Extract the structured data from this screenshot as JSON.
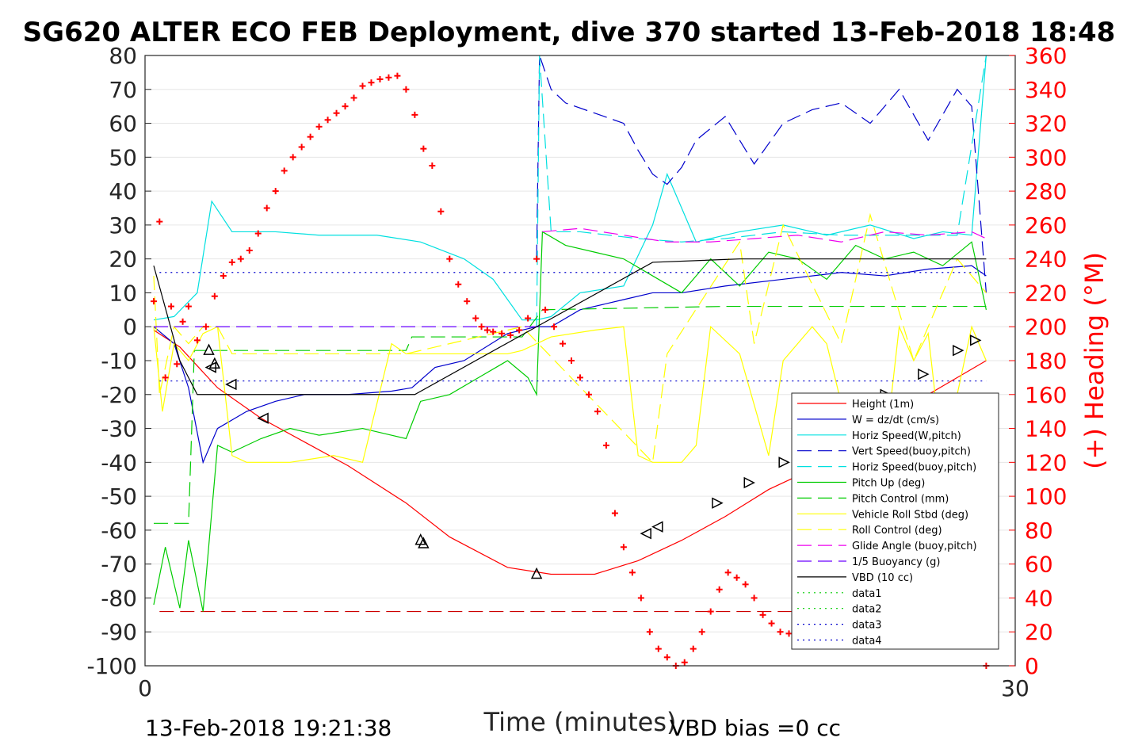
{
  "chart_data": {
    "type": "line",
    "title": "SG620 ALTER ECO FEB Deployment, dive 370 started 13-Feb-2018 18:48",
    "xlabel": "Time (minutes)",
    "ylabel_right": "(+) Heading (°M)",
    "xlim": [
      0,
      30
    ],
    "ylim_left": [
      -100,
      80
    ],
    "ylim_right": [
      0,
      360
    ],
    "x_ticks": [
      "0",
      "30"
    ],
    "y_ticks_left": [
      "80",
      "70",
      "60",
      "50",
      "40",
      "30",
      "20",
      "10",
      "0",
      "-10",
      "-20",
      "-30",
      "-40",
      "-50",
      "-60",
      "-70",
      "-80",
      "-90",
      "-100"
    ],
    "y_ticks_right": [
      "360",
      "340",
      "320",
      "300",
      "280",
      "260",
      "240",
      "220",
      "200",
      "180",
      "160",
      "140",
      "120",
      "100",
      "80",
      "60",
      "40",
      "20",
      "0"
    ],
    "grid": true,
    "legend_position": "lower-right",
    "footer_left": "13-Feb-2018 19:21:38",
    "footer_right": "VBD bias =0 cc",
    "series": [
      {
        "name": "Height (1m)",
        "color": "#ff0000",
        "style": "solid",
        "x": [
          0.3,
          1.2,
          2.5,
          4.0,
          5.5,
          7.0,
          9.0,
          10.5,
          12.5,
          14.0,
          15.5,
          17.0,
          18.5,
          20.0,
          21.5,
          23.5,
          25.5,
          27.0,
          29.0
        ],
        "y": [
          -1,
          -6,
          -18,
          -27,
          -34,
          -41,
          -52,
          -62,
          -71,
          -73,
          -73,
          -69,
          -63,
          -56,
          -48,
          -40,
          -30,
          -20,
          -10
        ]
      },
      {
        "name": "W = dz/dt (cm/s)",
        "color": "#0000cc",
        "style": "solid",
        "x": [
          0.3,
          1.0,
          1.5,
          2.0,
          2.5,
          3.5,
          4.5,
          5.5,
          7.0,
          8.5,
          9.2,
          10.0,
          11.0,
          12.5,
          13.5,
          14.0,
          15.0,
          16.5,
          17.5,
          18.5,
          20.0,
          22.0,
          24.0,
          25.5,
          27.0,
          28.5,
          29.0
        ],
        "y": [
          0,
          -5,
          -18,
          -40,
          -30,
          -25,
          -22,
          -20,
          -20,
          -19,
          -18,
          -12,
          -10,
          -2,
          0,
          0,
          5,
          8,
          10,
          10,
          12,
          14,
          16,
          15,
          17,
          18,
          15
        ]
      },
      {
        "name": "Horiz Speed(W,pitch)",
        "color": "#00e0e0",
        "style": "solid",
        "x": [
          0.3,
          1.0,
          1.8,
          2.3,
          3.0,
          4.5,
          6.0,
          8.0,
          9.5,
          11.0,
          12.0,
          13.0,
          13.5,
          14.0,
          15.0,
          16.5,
          17.5,
          18.0,
          19.0,
          20.5,
          22.0,
          23.5,
          25.0,
          26.5,
          27.5,
          28.5,
          29.0
        ],
        "y": [
          2,
          3,
          10,
          37,
          28,
          28,
          27,
          27,
          25,
          20,
          14,
          2,
          2,
          3,
          10,
          12,
          30,
          45,
          25,
          28,
          30,
          27,
          30,
          26,
          28,
          27,
          80
        ]
      },
      {
        "name": "Vert Speed(buoy,pitch)",
        "color": "#0000cc",
        "style": "dashed",
        "x": [
          13.5,
          13.6,
          14.0,
          14.5,
          15.5,
          16.5,
          17.0,
          17.5,
          18.0,
          18.5,
          19.0,
          20.0,
          21.0,
          22.0,
          23.0,
          24.0,
          25.0,
          26.0,
          27.0,
          28.0,
          28.5,
          29.0
        ],
        "y": [
          20,
          80,
          70,
          66,
          63,
          60,
          52,
          45,
          42,
          47,
          55,
          62,
          48,
          60,
          64,
          66,
          60,
          70,
          55,
          70,
          65,
          10
        ]
      },
      {
        "name": "Horiz Speed(buoy,pitch)",
        "color": "#00e0e0",
        "style": "dashed",
        "x": [
          13.5,
          13.6,
          14.0,
          15.0,
          17.0,
          18.5,
          20.0,
          22.0,
          24.0,
          26.0,
          28.0,
          29.0
        ],
        "y": [
          0,
          80,
          28,
          28,
          26,
          25,
          26,
          28,
          27,
          27,
          27,
          80
        ]
      },
      {
        "name": "Pitch Up (deg)",
        "color": "#00cc00",
        "style": "solid",
        "x": [
          0.3,
          0.7,
          1.2,
          1.5,
          2.0,
          2.5,
          3.0,
          4.0,
          5.0,
          6.0,
          7.5,
          9.0,
          9.5,
          10.5,
          11.5,
          12.5,
          13.2,
          13.5,
          13.7,
          14.5,
          15.5,
          16.5,
          17.5,
          18.5,
          19.5,
          20.5,
          21.5,
          22.5,
          23.5,
          24.5,
          25.5,
          26.5,
          27.5,
          28.5,
          29.0
        ],
        "y": [
          -82,
          -65,
          -83,
          -63,
          -84,
          -35,
          -37,
          -33,
          -30,
          -32,
          -30,
          -33,
          -22,
          -20,
          -15,
          -10,
          -15,
          -20,
          28,
          24,
          22,
          20,
          15,
          10,
          20,
          12,
          22,
          20,
          14,
          24,
          20,
          22,
          18,
          25,
          5
        ]
      },
      {
        "name": "Pitch Control (mm)",
        "color": "#00cc00",
        "style": "dashed",
        "x": [
          0.3,
          1.5,
          1.7,
          2.0,
          2.5,
          9.0,
          9.2,
          13.0,
          13.7,
          20.0,
          29.0
        ],
        "y": [
          -58,
          -58,
          -7,
          -7,
          -7,
          -7,
          -3,
          -3,
          5,
          6,
          6
        ]
      },
      {
        "name": "Vehicle Roll Stbd (deg)",
        "color": "#ffff00",
        "style": "solid",
        "x": [
          0.3,
          0.6,
          1.0,
          1.5,
          2.0,
          2.5,
          3.0,
          3.5,
          4.0,
          5.0,
          6.5,
          7.5,
          8.5,
          9.0,
          9.5,
          11.0,
          12.5,
          13.0,
          13.5,
          14.0,
          15.5,
          16.5,
          17.0,
          17.5,
          18.5,
          19.0,
          19.5,
          20.5,
          21.5,
          22.0,
          23.0,
          23.5,
          24.5,
          25.5,
          26.0,
          26.5,
          27.0,
          27.5,
          28.5,
          29.0
        ],
        "y": [
          0,
          -25,
          -5,
          -10,
          -2,
          0,
          -38,
          -40,
          -40,
          -40,
          -38,
          -40,
          -5,
          -8,
          -8,
          -8,
          -8,
          -7,
          -5,
          -3,
          -1,
          0,
          -38,
          -40,
          -40,
          -35,
          0,
          -8,
          -38,
          -10,
          0,
          -5,
          -40,
          -38,
          0,
          -10,
          -2,
          -40,
          0,
          -10
        ]
      },
      {
        "name": "Roll Control (deg)",
        "color": "#ffff00",
        "style": "dashed",
        "x": [
          0.3,
          0.5,
          1.0,
          1.5,
          2.0,
          2.5,
          3.0,
          9.0,
          13.0,
          17.5,
          18.0,
          20.5,
          21.0,
          22.0,
          24.0,
          25.0,
          26.5,
          28.0,
          29.0
        ],
        "y": [
          15,
          -20,
          0,
          -5,
          0,
          0,
          -8,
          -8,
          0,
          -40,
          -8,
          25,
          -5,
          30,
          -5,
          33,
          -10,
          20,
          10
        ]
      },
      {
        "name": "Glide Angle (buoy,pitch)",
        "color": "#ee00ee",
        "style": "dashed",
        "x": [
          13.7,
          15.0,
          16.5,
          18.0,
          19.5,
          21.0,
          22.5,
          24.0,
          25.5,
          27.0,
          28.5,
          29.0
        ],
        "y": [
          28,
          29,
          27,
          25,
          25,
          26,
          27,
          25,
          28,
          27,
          28,
          26
        ]
      },
      {
        "name": "1/5 Buoyancy (g)",
        "color": "#6a00ff",
        "style": "dashed",
        "x": [
          0.3,
          13.2,
          13.7
        ],
        "y": [
          0,
          0,
          0
        ]
      },
      {
        "name": "VBD (10 cc)",
        "color": "#000000",
        "style": "solid",
        "x": [
          0.3,
          1.2,
          1.8,
          8.0,
          9.3,
          13.5,
          17.5,
          20.5,
          29.0
        ],
        "y": [
          18,
          -10,
          -20,
          -20,
          -20,
          0,
          19,
          20,
          20
        ]
      },
      {
        "name": "data1",
        "color": "#00cc00",
        "style": "dotted",
        "x": [],
        "y": []
      },
      {
        "name": "data2",
        "color": "#00cc00",
        "style": "dotted",
        "x": [],
        "y": []
      },
      {
        "name": "data3",
        "color": "#0000cc",
        "style": "dotted",
        "x": [
          0.5,
          29.0
        ],
        "y": [
          -16,
          -16
        ]
      },
      {
        "name": "data4",
        "color": "#0000cc",
        "style": "dotted",
        "x": [
          0.5,
          29.0
        ],
        "y": [
          16,
          16
        ]
      }
    ],
    "reference_line": {
      "color": "#cc0000",
      "style": "dashed",
      "x": [
        0.5,
        29.0
      ],
      "y": [
        -84,
        -84
      ]
    },
    "heading_points": {
      "name": "(+) Heading (°M)",
      "color": "#ff0000",
      "marker": "+",
      "x": [
        0.3,
        0.5,
        0.7,
        0.9,
        1.1,
        1.3,
        1.5,
        1.8,
        2.1,
        2.4,
        2.7,
        3.0,
        3.3,
        3.6,
        3.9,
        4.2,
        4.5,
        4.8,
        5.1,
        5.4,
        5.7,
        6.0,
        6.3,
        6.6,
        6.9,
        7.2,
        7.5,
        7.8,
        8.1,
        8.4,
        8.7,
        9.0,
        9.3,
        9.6,
        9.9,
        10.2,
        10.5,
        10.8,
        11.1,
        11.4,
        11.6,
        11.8,
        12.0,
        12.3,
        12.6,
        12.9,
        13.2,
        13.5,
        13.8,
        14.1,
        14.4,
        14.7,
        15.0,
        15.3,
        15.6,
        15.9,
        16.2,
        16.5,
        16.8,
        17.1,
        17.4,
        17.7,
        18.0,
        18.3,
        18.6,
        18.9,
        19.2,
        19.5,
        19.8,
        20.1,
        20.4,
        20.7,
        21.0,
        21.3,
        21.6,
        21.9,
        22.2,
        22.5,
        22.8,
        23.1,
        23.4,
        23.7,
        24.0,
        24.3,
        24.6,
        24.9,
        25.2,
        25.5,
        25.8,
        26.1,
        26.4,
        26.7,
        27.0,
        27.3,
        27.6,
        27.9,
        28.2,
        28.5,
        28.8,
        29.0,
        29.1
      ],
      "y": [
        215,
        262,
        170,
        212,
        178,
        203,
        212,
        192,
        200,
        218,
        230,
        238,
        240,
        245,
        255,
        270,
        280,
        292,
        300,
        306,
        312,
        318,
        322,
        326,
        330,
        335,
        342,
        344,
        346,
        347,
        348,
        340,
        325,
        305,
        295,
        268,
        240,
        225,
        215,
        205,
        200,
        198,
        197,
        196,
        195,
        198,
        205,
        240,
        210,
        200,
        190,
        180,
        170,
        160,
        150,
        130,
        90,
        70,
        55,
        40,
        20,
        10,
        5,
        0,
        2,
        10,
        20,
        32,
        45,
        55,
        52,
        48,
        40,
        30,
        25,
        20,
        19,
        20,
        25,
        30,
        35,
        48,
        55,
        52,
        50,
        48,
        45,
        43,
        40,
        37,
        38,
        35,
        30,
        25,
        18,
        30,
        32,
        15,
        12,
        0,
        15
      ]
    },
    "turn_markers_up": {
      "x": [
        2.2,
        2.4,
        9.5,
        9.6,
        13.5
      ],
      "y": [
        -7,
        -11,
        -63,
        -64,
        -73
      ]
    },
    "turn_markers_right": {
      "x": [
        2.3,
        3.0,
        4.1,
        17.3,
        17.7,
        19.7,
        20.8,
        22.0,
        23.4,
        24.6,
        25.5,
        26.8,
        28.0,
        28.6
      ],
      "y": [
        -12,
        -17,
        -27,
        -61,
        -59,
        -52,
        -46,
        -40,
        -33,
        -28,
        -20,
        -14,
        -7,
        -4
      ]
    }
  }
}
